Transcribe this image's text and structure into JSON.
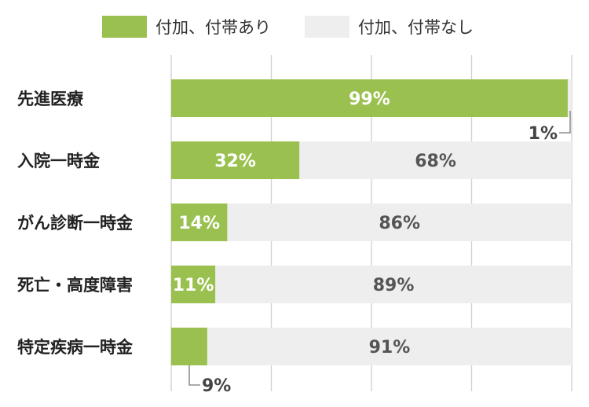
{
  "legend": {
    "with": "付加、付帯あり",
    "without": "付加、付帯なし"
  },
  "colors": {
    "with": "#9ac04f",
    "without": "#eeeeee",
    "grid": "#d0d0d0",
    "label_in_green": "#ffffff",
    "label_in_gray": "#555555"
  },
  "chart_data": {
    "type": "bar",
    "orientation": "horizontal",
    "stacked": true,
    "categories": [
      "先進医療",
      "入院一時金",
      "がん診断一時金",
      "死亡・高度障害",
      "特定疾病一時金"
    ],
    "series": [
      {
        "name": "付加、付帯あり",
        "values": [
          99,
          32,
          14,
          11,
          9
        ]
      },
      {
        "name": "付加、付帯なし",
        "values": [
          1,
          68,
          86,
          89,
          91
        ]
      }
    ],
    "xlim": [
      0,
      100
    ],
    "grid": true,
    "legend_position": "top",
    "labels": {
      "with": [
        "99%",
        "32%",
        "14%",
        "11%",
        "9%"
      ],
      "without": [
        "1%",
        "68%",
        "86%",
        "89%",
        "91%"
      ]
    }
  }
}
